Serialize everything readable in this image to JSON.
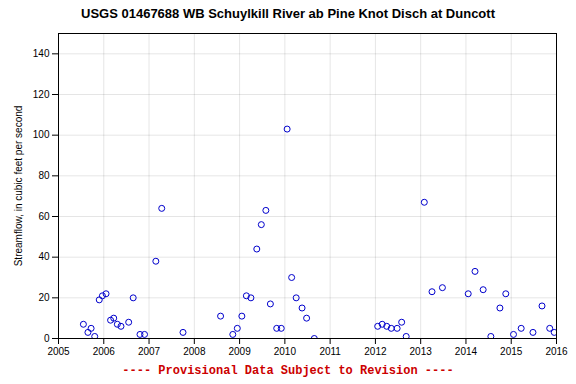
{
  "chart_data": {
    "type": "scatter",
    "title": "USGS 01467688 WB Schuylkill River ab Pine Knot Disch at Duncott",
    "ylabel": "Streamflow, in cubic feet per second",
    "annotations": [
      {
        "text": "---- Provisional Data Subject to Revision ----",
        "color": "#CC0000"
      }
    ],
    "color": "#0000CC",
    "marker": "circle",
    "grid": true,
    "xlim": [
      2005,
      2016
    ],
    "ylim": [
      0,
      150
    ],
    "xticks": [
      2005,
      2006,
      2007,
      2008,
      2009,
      2010,
      2011,
      2012,
      2013,
      2014,
      2015,
      2016
    ],
    "yticks": [
      0,
      20,
      40,
      60,
      80,
      100,
      120,
      140
    ],
    "x": [
      2005.55,
      2005.65,
      2005.72,
      2005.8,
      2005.9,
      2005.97,
      2006.05,
      2006.15,
      2006.22,
      2006.3,
      2006.38,
      2006.55,
      2006.65,
      2006.8,
      2006.9,
      2007.15,
      2007.28,
      2007.75,
      2008.58,
      2008.85,
      2008.95,
      2009.05,
      2009.15,
      2009.25,
      2009.38,
      2009.48,
      2009.58,
      2009.68,
      2009.82,
      2009.92,
      2010.05,
      2010.15,
      2010.25,
      2010.38,
      2010.48,
      2010.65,
      2012.05,
      2012.15,
      2012.25,
      2012.35,
      2012.48,
      2012.58,
      2012.68,
      2013.08,
      2013.25,
      2013.48,
      2014.05,
      2014.2,
      2014.38,
      2014.55,
      2014.75,
      2014.88,
      2015.05,
      2015.22,
      2015.48,
      2015.68,
      2015.85,
      2015.95
    ],
    "values": [
      7,
      3,
      5,
      1,
      19,
      21,
      22,
      9,
      10,
      7,
      6,
      8,
      20,
      2,
      2,
      38,
      64,
      3,
      11,
      2,
      5,
      11,
      21,
      20,
      44,
      56,
      63,
      17,
      5,
      5,
      103,
      30,
      20,
      15,
      10,
      0,
      6,
      7,
      6,
      5,
      5,
      8,
      1,
      67,
      23,
      25,
      22,
      33,
      24,
      1,
      15,
      22,
      2,
      5,
      3,
      16,
      5,
      3
    ]
  }
}
